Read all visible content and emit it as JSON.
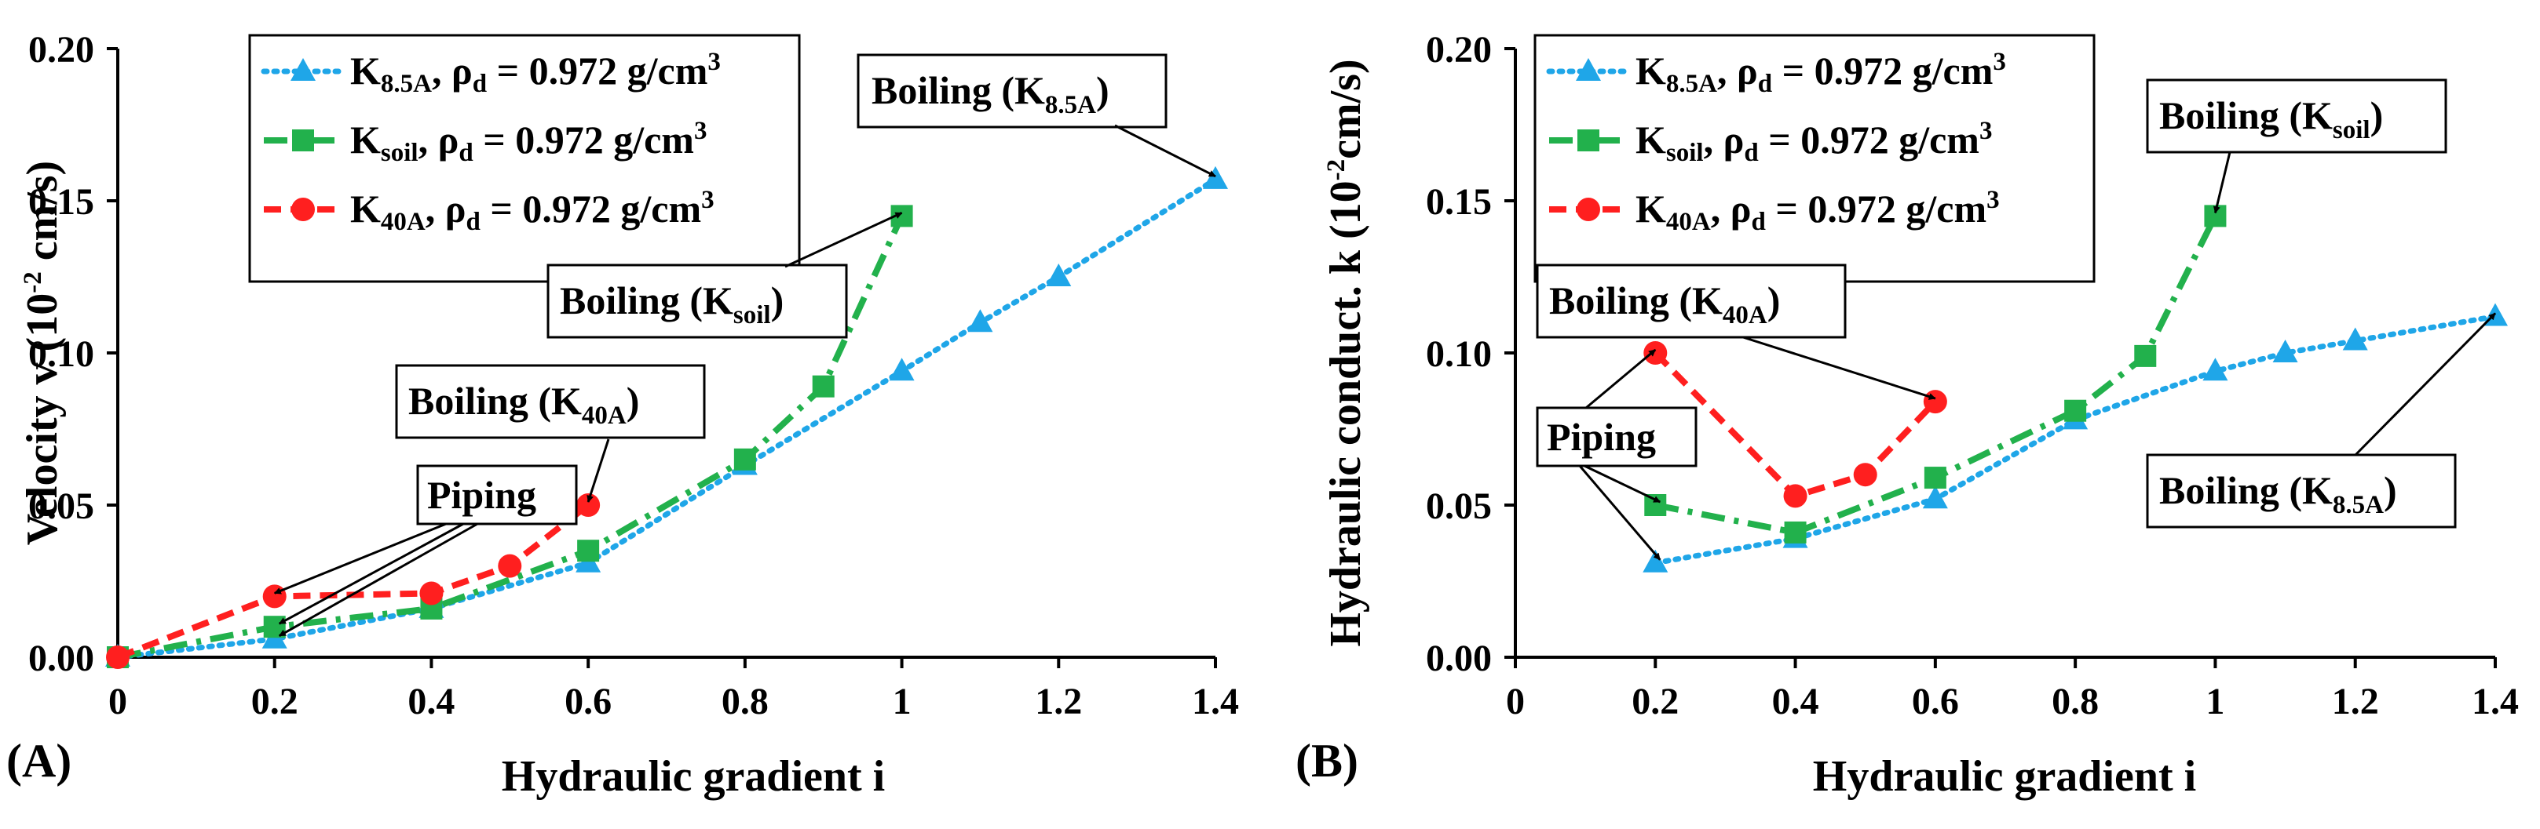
{
  "colors": {
    "k85a": "#1fa6e8",
    "ksoil": "#22b14c",
    "k40a": "#ff1f1f",
    "axis": "#000000"
  },
  "chart_data": [
    {
      "type": "line",
      "panel_label": "(A)",
      "xlabel": "Hydraulic gradient i",
      "ylabel_main": "Velocity v (10",
      "ylabel_sup": "-2",
      "ylabel_tail": " cm/s)",
      "xlim": [
        0,
        1.4
      ],
      "ylim": [
        0,
        0.2
      ],
      "xticks": [
        "0",
        "0.2",
        "0.4",
        "0.6",
        "0.8",
        "1",
        "1.2",
        "1.4"
      ],
      "xtick_values": [
        0,
        0.2,
        0.4,
        0.6,
        0.8,
        1,
        1.2,
        1.4
      ],
      "yticks": [
        "0.00",
        "0.05",
        "0.10",
        "0.15",
        "0.20"
      ],
      "ytick_values": [
        0,
        0.05,
        0.1,
        0.15,
        0.2
      ],
      "legend": {
        "position": "top-left",
        "rho": ", ρ",
        "rho_sub": "d",
        "value": " = 0.972 g/cm",
        "unit_sup": "3"
      },
      "series": [
        {
          "name": "K8.5A",
          "base": "K",
          "sub": "8.5A",
          "style": "dotted",
          "marker": "triangle",
          "color_key": "k85a",
          "x": [
            0,
            0.2,
            0.4,
            0.6,
            0.8,
            1.0,
            1.1,
            1.2,
            1.4
          ],
          "y": [
            0,
            0.006,
            0.016,
            0.031,
            0.063,
            0.094,
            0.11,
            0.125,
            0.157
          ]
        },
        {
          "name": "Ksoil",
          "base": "K",
          "sub": "soil",
          "style": "dashdot",
          "marker": "square",
          "color_key": "ksoil",
          "x": [
            0,
            0.2,
            0.4,
            0.6,
            0.8,
            0.9,
            1.0
          ],
          "y": [
            0,
            0.01,
            0.016,
            0.035,
            0.065,
            0.089,
            0.145
          ]
        },
        {
          "name": "K40A",
          "base": "K",
          "sub": "40A",
          "style": "dashed",
          "marker": "circle",
          "color_key": "k40a",
          "x": [
            0,
            0.2,
            0.4,
            0.5,
            0.6
          ],
          "y": [
            0,
            0.02,
            0.021,
            0.03,
            0.05
          ]
        }
      ],
      "annotations": [
        {
          "text": "Boiling (K",
          "sub": "8.5A",
          "tail": ")",
          "targets": [
            [
              1.4,
              0.157
            ]
          ]
        },
        {
          "text": "Boiling (K",
          "sub": "soil",
          "tail": ")",
          "targets": [
            [
              1.0,
              0.145
            ]
          ]
        },
        {
          "text": "Boiling (K",
          "sub": "40A",
          "tail": ")",
          "targets": [
            [
              0.6,
              0.05
            ]
          ]
        },
        {
          "text": "Piping",
          "sub": "",
          "tail": "",
          "targets": [
            [
              0.2,
              0.02
            ],
            [
              0.2,
              0.01
            ],
            [
              0.2,
              0.006
            ]
          ]
        }
      ]
    },
    {
      "type": "line",
      "panel_label": "(B)",
      "xlabel": "Hydraulic gradient i",
      "ylabel_main": "Hydraulic conduct. k (10",
      "ylabel_sup": "-2",
      "ylabel_tail": "cm/s)",
      "xlim": [
        0,
        1.4
      ],
      "ylim": [
        0,
        0.2
      ],
      "xticks": [
        "0",
        "0.2",
        "0.4",
        "0.6",
        "0.8",
        "1",
        "1.2",
        "1.4"
      ],
      "xtick_values": [
        0,
        0.2,
        0.4,
        0.6,
        0.8,
        1,
        1.2,
        1.4
      ],
      "yticks": [
        "0.00",
        "0.05",
        "0.10",
        "0.15",
        "0.20"
      ],
      "ytick_values": [
        0,
        0.05,
        0.1,
        0.15,
        0.2
      ],
      "legend": {
        "position": "top-left",
        "rho": ", ρ",
        "rho_sub": "d",
        "value": " = 0.972 g/cm",
        "unit_sup": "3"
      },
      "series": [
        {
          "name": "K8.5A",
          "base": "K",
          "sub": "8.5A",
          "style": "dotted",
          "marker": "triangle",
          "color_key": "k85a",
          "x": [
            0.2,
            0.4,
            0.6,
            0.8,
            1.0,
            1.1,
            1.2,
            1.4
          ],
          "y": [
            0.031,
            0.039,
            0.052,
            0.078,
            0.094,
            0.1,
            0.104,
            0.112
          ]
        },
        {
          "name": "Ksoil",
          "base": "K",
          "sub": "soil",
          "style": "dashdot",
          "marker": "square",
          "color_key": "ksoil",
          "x": [
            0.2,
            0.4,
            0.6,
            0.8,
            0.9,
            1.0
          ],
          "y": [
            0.05,
            0.041,
            0.059,
            0.081,
            0.099,
            0.145
          ]
        },
        {
          "name": "K40A",
          "base": "K",
          "sub": "40A",
          "style": "dashed",
          "marker": "circle",
          "color_key": "k40a",
          "x": [
            0.2,
            0.4,
            0.5,
            0.6
          ],
          "y": [
            0.1,
            0.053,
            0.06,
            0.084
          ]
        }
      ],
      "annotations": [
        {
          "text": "Boiling (K",
          "sub": "soil",
          "tail": ")",
          "targets": [
            [
              1.0,
              0.145
            ]
          ]
        },
        {
          "text": "Boiling (K",
          "sub": "40A",
          "tail": ")",
          "targets": [
            [
              0.6,
              0.084
            ]
          ]
        },
        {
          "text": "Piping",
          "sub": "",
          "tail": "",
          "targets": [
            [
              0.2,
              0.1
            ],
            [
              0.2,
              0.05
            ],
            [
              0.2,
              0.031
            ]
          ]
        },
        {
          "text": "Boiling (K",
          "sub": "8.5A",
          "tail": ")",
          "targets": [
            [
              1.4,
              0.112
            ]
          ]
        }
      ]
    }
  ]
}
